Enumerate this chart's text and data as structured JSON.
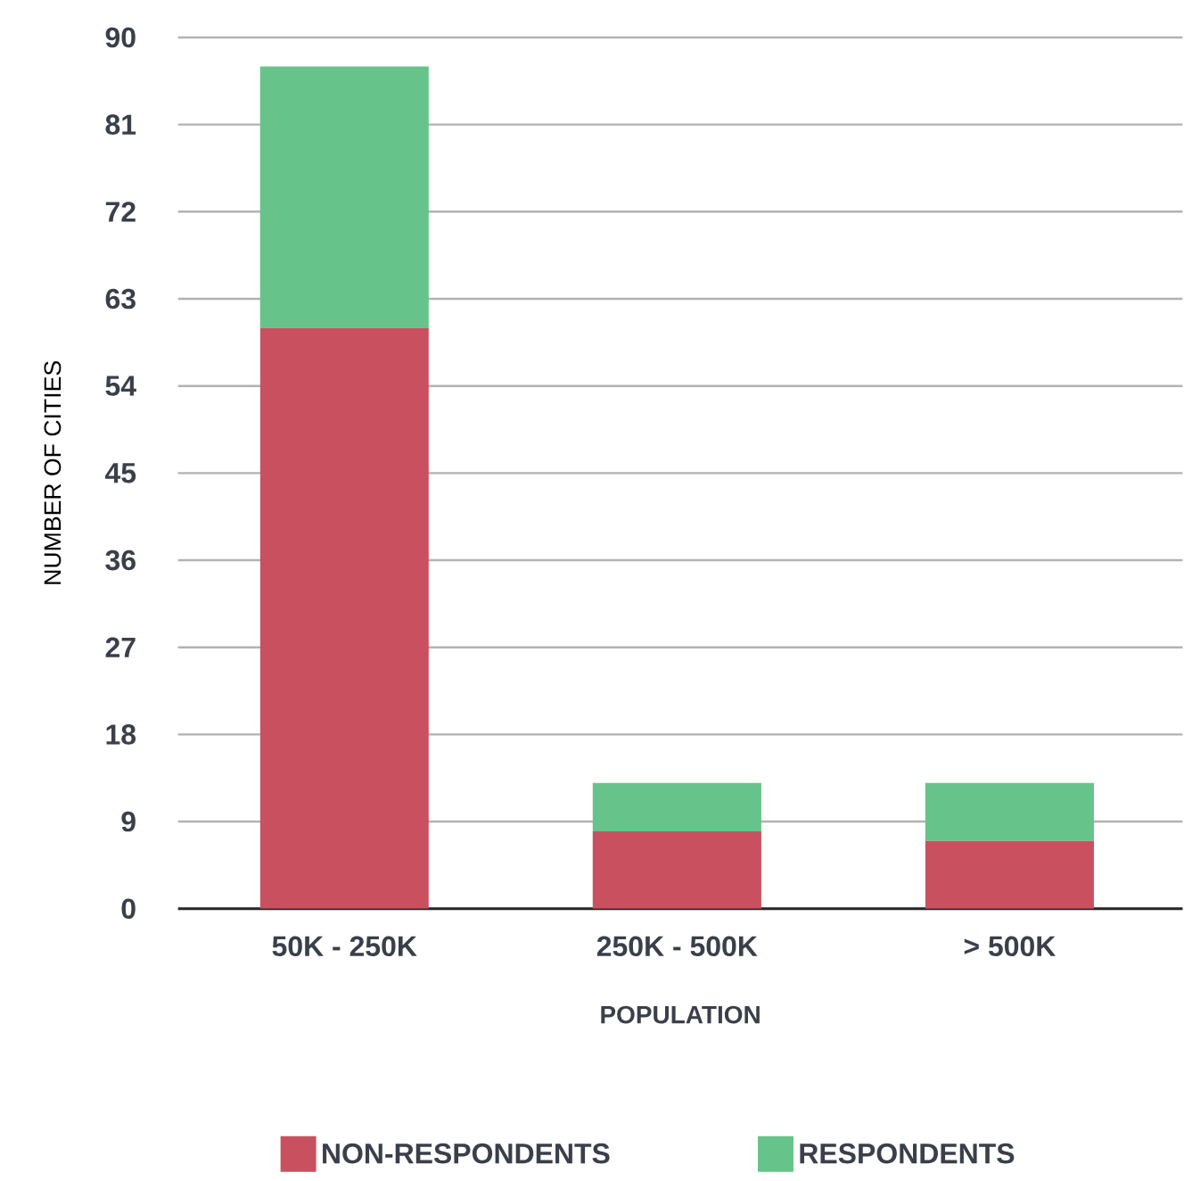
{
  "chart_data": {
    "type": "bar",
    "stacked": true,
    "xlabel": "POPULATION",
    "ylabel": "NUMBER OF CITIES",
    "categories": [
      "50K - 250K",
      "250K - 500K",
      "> 500K"
    ],
    "series": [
      {
        "name": "NON-RESPONDENTS",
        "color": "#c9515f",
        "values": [
          60,
          8,
          7
        ]
      },
      {
        "name": "RESPONDENTS",
        "color": "#66c48a",
        "values": [
          27,
          5,
          6
        ]
      }
    ],
    "ylim": [
      0,
      90
    ],
    "yticks": [
      0,
      9,
      18,
      27,
      36,
      45,
      54,
      63,
      72,
      81,
      90
    ],
    "grid": "y",
    "legend": "bottom"
  }
}
